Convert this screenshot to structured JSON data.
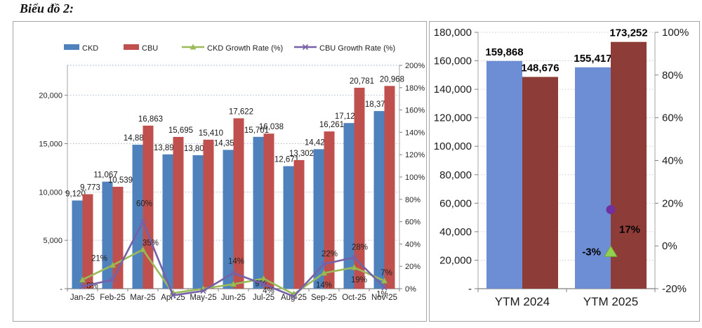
{
  "page": {
    "title": "Biểu đồ 2:"
  },
  "colors": {
    "ckd_bar": "#4f81bd",
    "cbu_bar": "#c0504d",
    "ckd_growth_line": "#9bbb59",
    "cbu_growth_line": "#7661a8",
    "ytd_ckd_bar": "#6d8dd5",
    "ytd_cbu_bar": "#8e3c38",
    "marker_triangle": "#92d050",
    "marker_circle": "#7030a0",
    "grid_left_chart": "#a9bcda",
    "grid_right_chart": "#cccccc",
    "axis_line": "#808080",
    "label_text": "#1a1a1a"
  },
  "chart_data": [
    {
      "type": "combo-bar-line",
      "title": "",
      "categories": [
        "Jan-25",
        "Feb-25",
        "Mar-25",
        "Apr-25",
        "May-25",
        "Jun-25",
        "Jul-25",
        "Aug-25",
        "Sep-25",
        "Oct-25",
        "Nov-25"
      ],
      "series": [
        {
          "name": "CKD",
          "type": "bar",
          "axis": "left",
          "values": [
            9120,
            11067,
            14887,
            13890,
            13800,
            14355,
            15701,
            12671,
            14427,
            17129,
            18370
          ],
          "labels": [
            "9,120",
            "11,067",
            "14,887",
            "13,890",
            "13,800",
            "14,355",
            "15,701",
            "12,671",
            "14,427",
            "17,129",
            "18,370"
          ]
        },
        {
          "name": "CBU",
          "type": "bar",
          "axis": "left",
          "values": [
            9773,
            10539,
            16863,
            15695,
            15410,
            17622,
            16038,
            13302,
            16261,
            20781,
            20968
          ],
          "labels": [
            "9,773",
            "10,539",
            "16,863",
            "15,695",
            "15,410",
            "17,622",
            "16,038",
            "13,302",
            "16,261",
            "20,781",
            "20,968"
          ]
        },
        {
          "name": "CKD Growth Rate (%)",
          "type": "line",
          "axis": "right",
          "marker": "triangle",
          "values": [
            8,
            21,
            35,
            -4,
            0,
            4,
            9,
            -5,
            14,
            19,
            7
          ],
          "point_labels": [
            "8%",
            "21%",
            "35%",
            "",
            "",
            "",
            "9%",
            "",
            "14%",
            "19%",
            "7%"
          ]
        },
        {
          "name": "CBU Growth Rate (%)",
          "type": "line",
          "axis": "right",
          "marker": "x",
          "values": [
            2,
            8,
            60,
            -6,
            -2,
            14,
            4,
            -7,
            22,
            28,
            1
          ],
          "point_labels": [
            "",
            "",
            "60%",
            "",
            "",
            "14%",
            "4%",
            "",
            "22%",
            "28%",
            "1%"
          ]
        }
      ],
      "left_axis": {
        "tick_labels": [
          "20,000",
          "15,000",
          "10,000",
          "5,000",
          "-"
        ],
        "tick_values": [
          20000,
          15000,
          10000,
          5000,
          0
        ],
        "min": 0,
        "max": 23100,
        "gridlines": true
      },
      "right_axis": {
        "tick_labels": [
          "200%",
          "180%",
          "160%",
          "140%",
          "120%",
          "100%",
          "80%",
          "60%",
          "40%",
          "20%",
          "0%"
        ],
        "tick_values": [
          200,
          180,
          160,
          140,
          120,
          100,
          80,
          60,
          40,
          20,
          0
        ],
        "min": 0,
        "max": 200
      },
      "legend_position": "top"
    },
    {
      "type": "bar",
      "title": "",
      "categories": [
        "YTM 2024",
        "YTM 2025"
      ],
      "series": [
        {
          "name": "CKD",
          "values": [
            159868,
            155417
          ],
          "labels": [
            "159,868",
            "155,417"
          ]
        },
        {
          "name": "CBU",
          "values": [
            148676,
            173252
          ],
          "labels": [
            "148,676",
            "173,252"
          ]
        }
      ],
      "markers": [
        {
          "name": "CKD growth",
          "shape": "triangle",
          "category_index": 1,
          "value": -3,
          "label": "-3%"
        },
        {
          "name": "CBU growth",
          "shape": "circle",
          "category_index": 1,
          "value": 17,
          "label": "17%"
        }
      ],
      "left_axis": {
        "tick_labels": [
          "180,000",
          "160,000",
          "140,000",
          "120,000",
          "100,000",
          "80,000",
          "60,000",
          "40,000",
          "20,000",
          "-"
        ],
        "tick_values": [
          180000,
          160000,
          140000,
          120000,
          100000,
          80000,
          60000,
          40000,
          20000,
          0
        ],
        "min": 0,
        "max": 180000,
        "gridlines": true
      },
      "right_axis": {
        "tick_labels": [
          "100%",
          "80%",
          "60%",
          "40%",
          "20%",
          "0%",
          "-20%"
        ],
        "tick_values": [
          100,
          80,
          60,
          40,
          20,
          0,
          -20
        ],
        "min": -20,
        "max": 100
      },
      "legend_position": "none"
    }
  ]
}
